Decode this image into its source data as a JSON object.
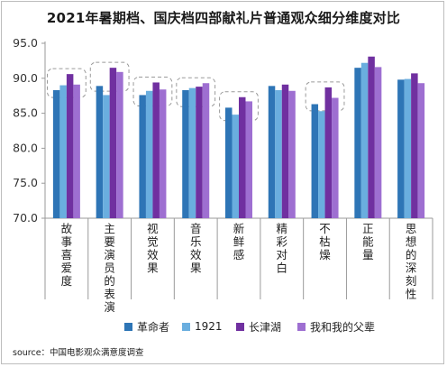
{
  "chart_data": {
    "type": "bar",
    "title": "2021年暑期档、国庆档四部献礼片普通观众细分维度对比",
    "categories": [
      "故事喜爱度",
      "主要演员的表演",
      "视觉效果",
      "音乐效果",
      "新鲜感",
      "精彩对白",
      "不枯燥",
      "正能量",
      "思想的深刻性"
    ],
    "series": [
      {
        "name": "革命者",
        "color": "#2e75b6",
        "values": [
          88.3,
          88.9,
          87.6,
          88.3,
          85.8,
          88.9,
          86.3,
          91.5,
          89.8
        ]
      },
      {
        "name": "1921",
        "color": "#6aaedf",
        "values": [
          89.0,
          87.6,
          88.2,
          88.6,
          84.8,
          88.3,
          85.3,
          92.2,
          89.9
        ]
      },
      {
        "name": "长津湖",
        "color": "#7030a0",
        "values": [
          90.6,
          91.5,
          89.4,
          88.8,
          87.3,
          89.1,
          88.7,
          93.1,
          90.7
        ]
      },
      {
        "name": "我和我的父辈",
        "color": "#9e6fd1",
        "values": [
          89.1,
          90.9,
          88.4,
          89.3,
          86.7,
          88.2,
          87.2,
          91.6,
          89.3
        ]
      }
    ],
    "ylim": [
      70,
      95
    ],
    "yticks": [
      "70.0",
      "75.0",
      "80.0",
      "85.0",
      "90.0",
      "95.0"
    ],
    "highlighted_categories": [
      0,
      1,
      2,
      3,
      4,
      6
    ],
    "grid": false,
    "legend_position": "bottom"
  },
  "source_text": "source：中国电影观众满意度调查"
}
